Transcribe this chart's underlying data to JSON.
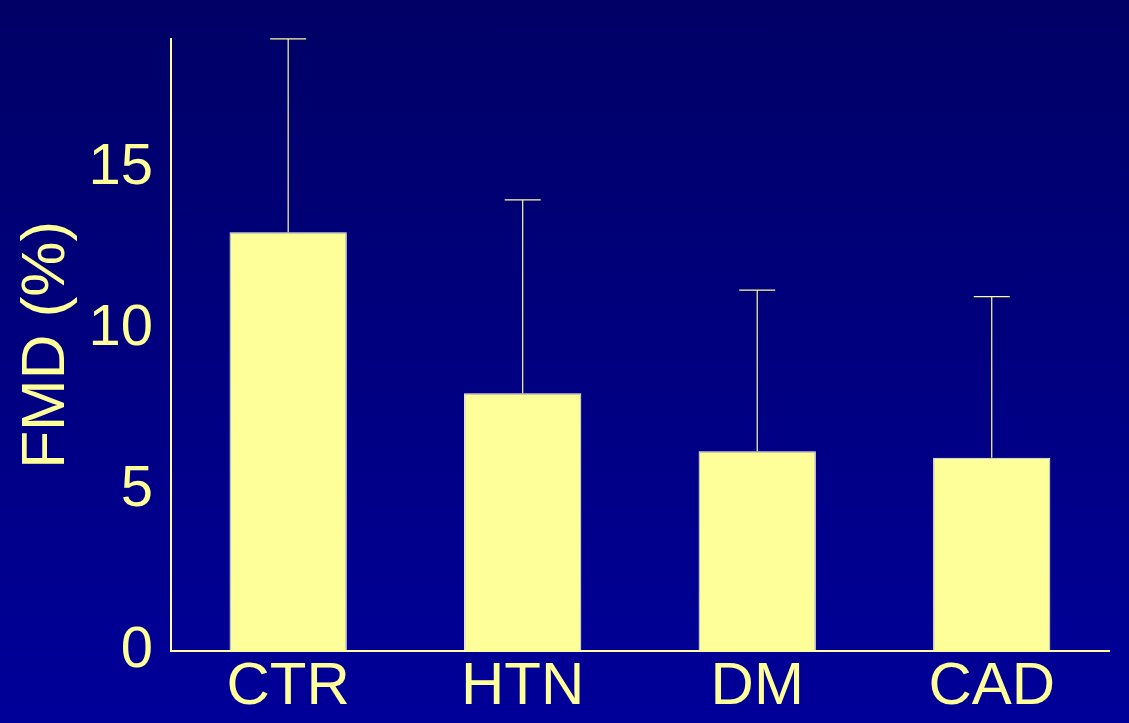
{
  "chart_data": {
    "type": "bar",
    "ylabel": "FMD (%)",
    "categories": [
      "CTR",
      "HTN",
      "DM",
      "CAD"
    ],
    "values": [
      13,
      8,
      6.2,
      6
    ],
    "errors": [
      [
        13,
        19
      ],
      [
        8,
        14
      ],
      [
        6.2,
        11.2
      ],
      [
        6,
        11
      ]
    ],
    "color": "#ffff99",
    "ylim": [
      0,
      19
    ],
    "yticks": [
      0,
      5,
      10,
      15
    ],
    "grid": false,
    "legend": false
  }
}
